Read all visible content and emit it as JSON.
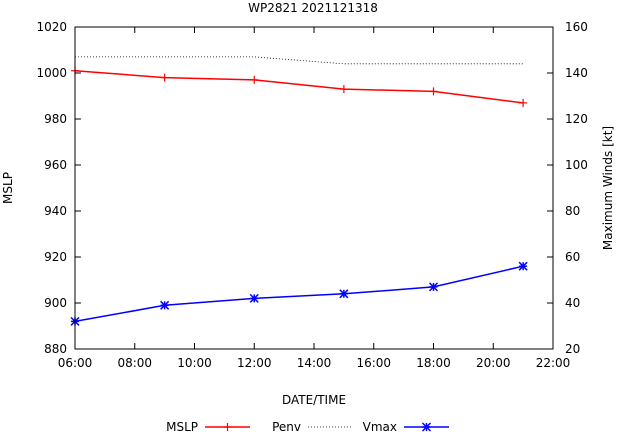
{
  "chart_data": {
    "type": "line",
    "title": "WP2821 2021121318",
    "xlabel": "DATE/TIME",
    "ylabel": "MSLP",
    "y2label": "Maximum Winds [kt]",
    "x_ticks": [
      "06:00",
      "08:00",
      "10:00",
      "12:00",
      "14:00",
      "16:00",
      "18:00",
      "20:00",
      "22:00"
    ],
    "xlim": [
      6,
      22
    ],
    "ylim": [
      880,
      1020
    ],
    "y2lim": [
      20,
      160
    ],
    "y_ticks": [
      "880",
      "900",
      "920",
      "940",
      "960",
      "980",
      "1000",
      "1020"
    ],
    "y2_ticks": [
      "20",
      "40",
      "60",
      "80",
      "100",
      "120",
      "140",
      "160"
    ],
    "legend_position": "bottom",
    "series": [
      {
        "name": "MSLP",
        "axis": "left",
        "style": "solid",
        "marker": "plus",
        "color": "#ff0000",
        "x": [
          6,
          9,
          12,
          15,
          18,
          21
        ],
        "values": [
          1001,
          998,
          997,
          993,
          992,
          987
        ]
      },
      {
        "name": "Penv",
        "axis": "left",
        "style": "dotted",
        "marker": "none",
        "color": "#000000",
        "x": [
          6,
          9,
          12,
          15,
          18,
          21
        ],
        "values": [
          1007,
          1007,
          1007,
          1004,
          1004,
          1004
        ]
      },
      {
        "name": "Vmax",
        "axis": "right",
        "style": "solid",
        "marker": "star",
        "color": "#0000ff",
        "x": [
          6,
          9,
          12,
          15,
          18,
          21
        ],
        "values": [
          32,
          39,
          42,
          44,
          47,
          56
        ]
      }
    ]
  }
}
